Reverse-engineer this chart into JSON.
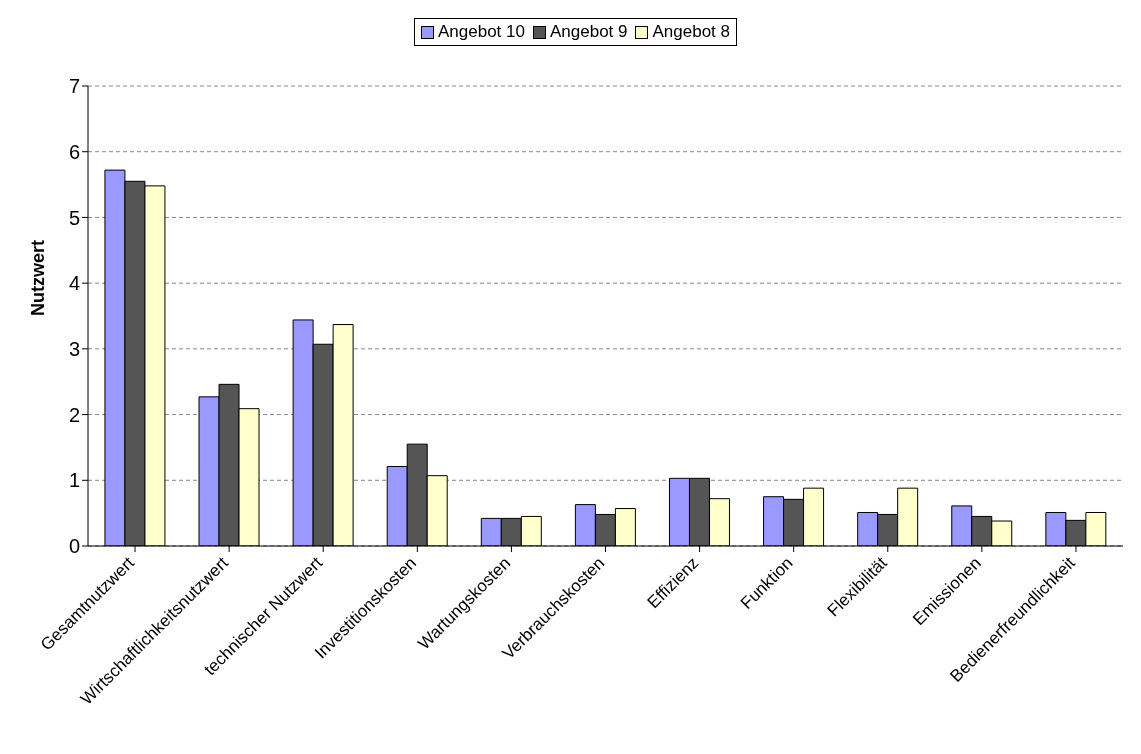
{
  "chart_data": {
    "type": "bar",
    "ylabel": "Nutzwert",
    "categories": [
      "Gesamtnutzwert",
      "Wirtschaftlichkeitsnutzwert",
      "technischer Nutzwert",
      "Investitionskosten",
      "Wartungskosten",
      "Verbrauchskosten",
      "Effizienz",
      "Funktion",
      "Flexibilität",
      "Emissionen",
      "Bedienerfreundlichkeit"
    ],
    "series": [
      {
        "name": "Angebot 10",
        "color": "#9999ff",
        "values": [
          5.72,
          2.27,
          3.44,
          1.21,
          0.42,
          0.63,
          1.03,
          0.75,
          0.51,
          0.61,
          0.51
        ]
      },
      {
        "name": "Angebot 9",
        "color": "#555555",
        "values": [
          5.55,
          2.46,
          3.07,
          1.55,
          0.42,
          0.48,
          1.03,
          0.71,
          0.48,
          0.45,
          0.39
        ]
      },
      {
        "name": "Angebot 8",
        "color": "#ffffcc",
        "values": [
          5.48,
          2.09,
          3.37,
          1.07,
          0.45,
          0.57,
          0.72,
          0.88,
          0.88,
          0.38,
          0.51
        ]
      }
    ],
    "ylim": [
      0,
      7
    ],
    "yticks": [
      0,
      1,
      2,
      3,
      4,
      5,
      6,
      7
    ],
    "grid": "y",
    "legend": "top"
  }
}
